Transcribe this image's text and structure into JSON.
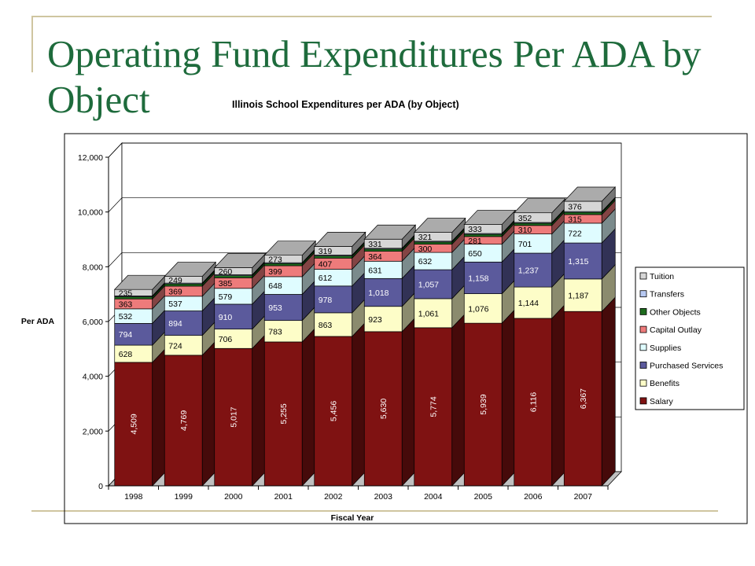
{
  "slide": {
    "title": "Operating Fund Expenditures Per ADA by Object"
  },
  "chart_data": {
    "type": "bar",
    "stacked": true,
    "title": "Illinois School Expenditures per ADA (by Object)",
    "xlabel": "Fiscal Year",
    "ylabel": "Per ADA",
    "ylim": [
      0,
      12000
    ],
    "yticks": [
      "0",
      "2,000",
      "4,000",
      "6,000",
      "8,000",
      "10,000",
      "12,000"
    ],
    "grid": true,
    "legend_position": "right",
    "categories": [
      "1998",
      "1999",
      "2000",
      "2001",
      "2002",
      "2003",
      "2004",
      "2005",
      "2006",
      "2007"
    ],
    "series": [
      {
        "name": "Salary",
        "color": "#7f1212",
        "label_rotated": true,
        "values": [
          4509,
          4769,
          5017,
          5255,
          5456,
          5630,
          5774,
          5939,
          6116,
          6367
        ],
        "labels": [
          "4,509",
          "4,769",
          "5,017",
          "5,255",
          "5,456",
          "5,630",
          "5,774",
          "5,939",
          "6,116",
          "6,367"
        ]
      },
      {
        "name": "Benefits",
        "color": "#fdfdc8",
        "values": [
          628,
          724,
          706,
          783,
          863,
          923,
          1061,
          1076,
          1144,
          1187
        ],
        "labels": [
          "628",
          "724",
          "706",
          "783",
          "863",
          "923",
          "1,061",
          "1,076",
          "1,144",
          "1,187"
        ]
      },
      {
        "name": "Purchased Services",
        "color": "#5b5a9c",
        "values": [
          794,
          894,
          910,
          953,
          978,
          1018,
          1057,
          1158,
          1237,
          1315
        ],
        "labels": [
          "794",
          "894",
          "910",
          "953",
          "978",
          "1,018",
          "1,057",
          "1,158",
          "1,237",
          "1,315"
        ]
      },
      {
        "name": "Supplies",
        "color": "#dffcff",
        "values": [
          532,
          537,
          579,
          648,
          612,
          631,
          632,
          650,
          701,
          722
        ],
        "labels": [
          "532",
          "537",
          "579",
          "648",
          "612",
          "631",
          "632",
          "650",
          "701",
          "722"
        ]
      },
      {
        "name": "Capital Outlay",
        "color": "#ee7b7b",
        "values": [
          363,
          369,
          385,
          399,
          407,
          364,
          300,
          281,
          310,
          315
        ],
        "labels": [
          "363",
          "369",
          "385",
          "399",
          "407",
          "364",
          "300",
          "281",
          "310",
          "315"
        ]
      },
      {
        "name": "Other Objects",
        "color": "#1d6b1d",
        "values": [
          80,
          80,
          80,
          80,
          80,
          80,
          80,
          80,
          80,
          80
        ],
        "labels": []
      },
      {
        "name": "Transfers",
        "color": "#b7c9f2",
        "values": [
          30,
          30,
          30,
          30,
          30,
          30,
          30,
          30,
          30,
          30
        ],
        "labels": []
      },
      {
        "name": "Tuition",
        "color": "#d6d6d6",
        "values": [
          235,
          249,
          260,
          273,
          319,
          331,
          321,
          333,
          352,
          376
        ],
        "labels": [
          "235",
          "249",
          "260",
          "273",
          "319",
          "331",
          "321",
          "333",
          "352",
          "376"
        ]
      }
    ],
    "legend_order": [
      "Tuition",
      "Transfers",
      "Other Objects",
      "Capital Outlay",
      "Supplies",
      "Purchased Services",
      "Benefits",
      "Salary"
    ]
  }
}
